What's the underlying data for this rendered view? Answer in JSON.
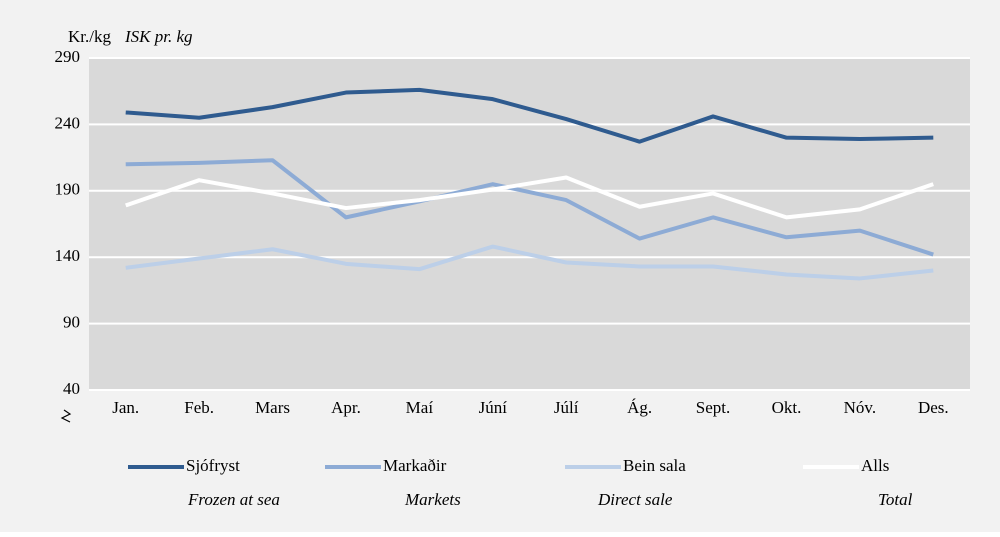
{
  "chart_data": {
    "type": "line",
    "y_label": "Kr./kg",
    "y_label_en": "ISK pr. kg",
    "categories": [
      "Jan.",
      "Feb.",
      "Mars",
      "Apr.",
      "Maí",
      "Júní",
      "Júlí",
      "Ág.",
      "Sept.",
      "Okt.",
      "Nóv.",
      "Des."
    ],
    "series": [
      {
        "name": "Sjófryst",
        "name_en": "Frozen at sea",
        "color": "#2f5b8f",
        "values": [
          249,
          245,
          253,
          264,
          266,
          259,
          244,
          227,
          246,
          230,
          229,
          230
        ]
      },
      {
        "name": "Markaðir",
        "name_en": "Markets",
        "color": "#8dabd5",
        "values": [
          210,
          211,
          213,
          170,
          182,
          195,
          183,
          154,
          170,
          155,
          160,
          142
        ]
      },
      {
        "name": "Bein sala",
        "name_en": "Direct sale",
        "color": "#bccfe8",
        "values": [
          132,
          139,
          146,
          135,
          131,
          148,
          136,
          133,
          133,
          127,
          124,
          130
        ]
      },
      {
        "name": "Alls",
        "name_en": "Total",
        "color": "#ffffff",
        "values": [
          179,
          198,
          188,
          177,
          183,
          191,
          200,
          178,
          188,
          170,
          176,
          195
        ]
      }
    ],
    "ylim": [
      40,
      290
    ],
    "yticks": [
      40,
      90,
      140,
      190,
      240,
      290
    ],
    "grid": true
  }
}
